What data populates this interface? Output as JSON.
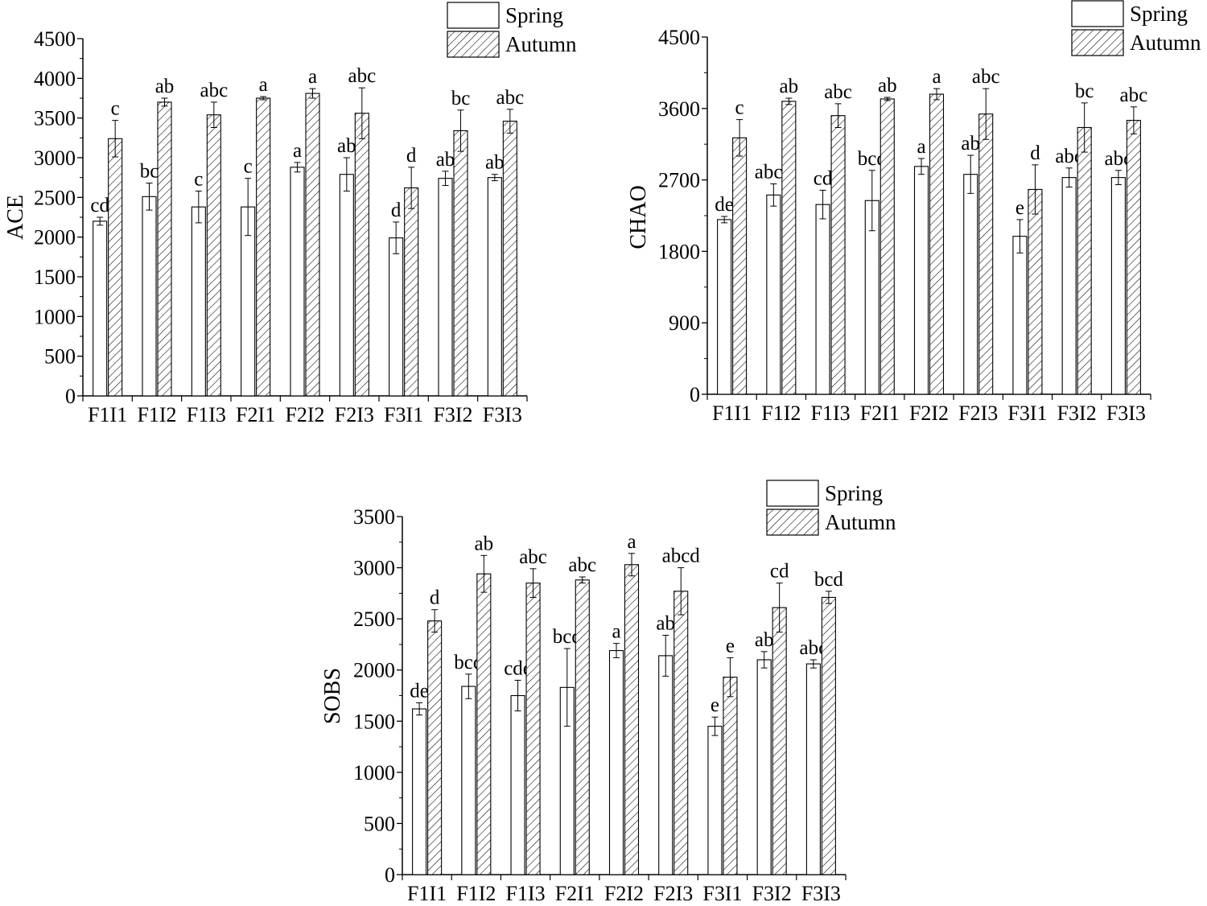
{
  "legend": {
    "spring": "Spring",
    "autumn": "Autumn"
  },
  "chart_data": [
    {
      "type": "bar",
      "title": "",
      "xlabel": "",
      "ylabel": "ACE",
      "ylim": [
        0,
        4500
      ],
      "yticks": [
        0,
        500,
        1000,
        1500,
        2000,
        2500,
        3000,
        3500,
        4000,
        4500
      ],
      "categories": [
        "F1I1",
        "F1I2",
        "F1I3",
        "F2I1",
        "F2I2",
        "F2I3",
        "F3I1",
        "F3I2",
        "F3I3"
      ],
      "series": [
        {
          "name": "Spring",
          "values": [
            2200,
            2510,
            2380,
            2380,
            2880,
            2790,
            1990,
            2740,
            2750
          ],
          "errors": [
            50,
            170,
            200,
            360,
            60,
            210,
            200,
            90,
            40
          ],
          "letters": [
            "cd",
            "bc",
            "c",
            "c",
            "a",
            "ab",
            "d",
            "ab",
            "ab"
          ]
        },
        {
          "name": "Autumn",
          "values": [
            3240,
            3700,
            3540,
            3750,
            3810,
            3560,
            2620,
            3340,
            3460
          ],
          "errors": [
            230,
            50,
            160,
            20,
            60,
            320,
            260,
            260,
            150
          ],
          "letters": [
            "c",
            "ab",
            "abc",
            "a",
            "a",
            "abc",
            "d",
            "bc",
            "abc"
          ]
        }
      ]
    },
    {
      "type": "bar",
      "title": "",
      "xlabel": "",
      "ylabel": "CHAO",
      "ylim": [
        0,
        4500
      ],
      "yticks": [
        0,
        900,
        1800,
        2700,
        3600,
        4500
      ],
      "categories": [
        "F1I1",
        "F1I2",
        "F1I3",
        "F2I1",
        "F2I2",
        "F2I3",
        "F3I1",
        "F3I2",
        "F3I3"
      ],
      "series": [
        {
          "name": "Spring",
          "values": [
            2200,
            2510,
            2390,
            2440,
            2870,
            2770,
            1990,
            2730,
            2730
          ],
          "errors": [
            40,
            140,
            180,
            380,
            100,
            240,
            210,
            120,
            90
          ],
          "letters": [
            "de",
            "abcd",
            "cd",
            "bcd",
            "a",
            "ab",
            "e",
            "abc",
            "abc"
          ]
        },
        {
          "name": "Autumn",
          "values": [
            3230,
            3690,
            3510,
            3720,
            3780,
            3530,
            2580,
            3360,
            3450
          ],
          "errors": [
            230,
            40,
            150,
            20,
            70,
            320,
            310,
            310,
            170
          ],
          "letters": [
            "c",
            "ab",
            "abc",
            "ab",
            "a",
            "abc",
            "d",
            "bc",
            "abc"
          ]
        }
      ]
    },
    {
      "type": "bar",
      "title": "",
      "xlabel": "",
      "ylabel": "SOBS",
      "ylim": [
        0,
        3500
      ],
      "yticks": [
        0,
        500,
        1000,
        1500,
        2000,
        2500,
        3000,
        3500
      ],
      "categories": [
        "F1I1",
        "F1I2",
        "F1I3",
        "F2I1",
        "F2I2",
        "F2I3",
        "F3I1",
        "F3I2",
        "F3I3"
      ],
      "series": [
        {
          "name": "Spring",
          "values": [
            1620,
            1840,
            1750,
            1830,
            2190,
            2140,
            1450,
            2100,
            2060
          ],
          "errors": [
            60,
            120,
            150,
            380,
            70,
            200,
            90,
            80,
            40
          ],
          "letters": [
            "de",
            "bcd",
            "cde",
            "bcd",
            "a",
            "ab",
            "e",
            "ab",
            "abc"
          ]
        },
        {
          "name": "Autumn",
          "values": [
            2480,
            2940,
            2850,
            2880,
            3030,
            2770,
            1930,
            2610,
            2710
          ],
          "errors": [
            110,
            180,
            140,
            30,
            110,
            230,
            190,
            240,
            60
          ],
          "letters": [
            "d",
            "ab",
            "abc",
            "abc",
            "a",
            "abcd",
            "e",
            "cd",
            "bcd"
          ]
        }
      ]
    }
  ]
}
